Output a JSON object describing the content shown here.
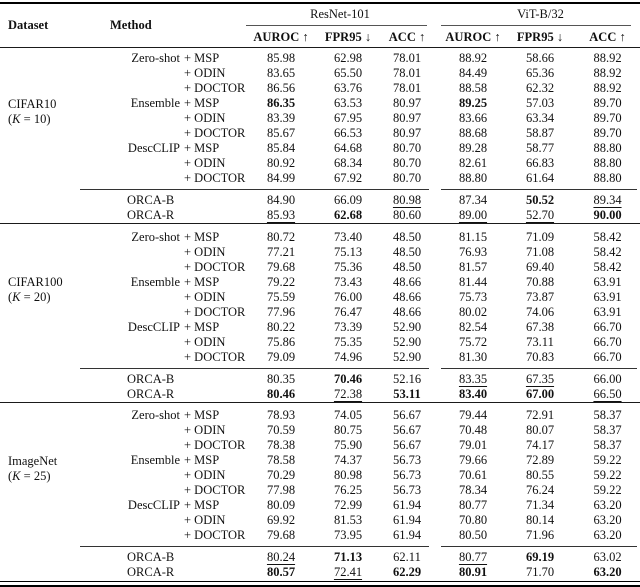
{
  "header": {
    "dataset_label": "Dataset",
    "method_label": "Method",
    "backbones": [
      "ResNet-101",
      "ViT-B/32"
    ],
    "metrics": [
      "AUROC ↑",
      "FPR95 ↓",
      "ACC ↑"
    ]
  },
  "blocks": [
    {
      "dataset": "CIFAR10",
      "k_symbol": "K",
      "k_rest": " = 10",
      "rows": [
        {
          "g": "Zero-shot",
          "v": "+ MSP",
          "vals": [
            [
              "85.98",
              ""
            ],
            [
              "62.98",
              ""
            ],
            [
              "78.01",
              ""
            ],
            [
              "88.92",
              ""
            ],
            [
              "58.66",
              ""
            ],
            [
              "88.92",
              ""
            ]
          ]
        },
        {
          "g": "",
          "v": "+ ODIN",
          "vals": [
            [
              "83.65",
              ""
            ],
            [
              "65.50",
              ""
            ],
            [
              "78.01",
              ""
            ],
            [
              "84.49",
              ""
            ],
            [
              "65.36",
              ""
            ],
            [
              "88.92",
              ""
            ]
          ]
        },
        {
          "g": "",
          "v": "+ DOCTOR",
          "vals": [
            [
              "86.56",
              ""
            ],
            [
              "63.76",
              ""
            ],
            [
              "78.01",
              ""
            ],
            [
              "88.58",
              ""
            ],
            [
              "62.32",
              ""
            ],
            [
              "88.92",
              ""
            ]
          ]
        },
        {
          "g": "Ensemble",
          "v": "+ MSP",
          "vals": [
            [
              "86.35",
              "b"
            ],
            [
              "63.53",
              ""
            ],
            [
              "80.97",
              ""
            ],
            [
              "89.25",
              "b"
            ],
            [
              "57.03",
              ""
            ],
            [
              "89.70",
              ""
            ]
          ]
        },
        {
          "g": "",
          "v": "+ ODIN",
          "vals": [
            [
              "83.39",
              ""
            ],
            [
              "67.95",
              ""
            ],
            [
              "80.97",
              ""
            ],
            [
              "83.66",
              ""
            ],
            [
              "63.34",
              ""
            ],
            [
              "89.70",
              ""
            ]
          ]
        },
        {
          "g": "",
          "v": "+ DOCTOR",
          "vals": [
            [
              "85.67",
              ""
            ],
            [
              "66.53",
              ""
            ],
            [
              "80.97",
              ""
            ],
            [
              "88.68",
              ""
            ],
            [
              "58.87",
              ""
            ],
            [
              "89.70",
              ""
            ]
          ]
        },
        {
          "g": "DescCLIP",
          "v": "+ MSP",
          "vals": [
            [
              "85.84",
              ""
            ],
            [
              "64.68",
              ""
            ],
            [
              "80.70",
              ""
            ],
            [
              "89.28",
              ""
            ],
            [
              "58.77",
              ""
            ],
            [
              "88.80",
              ""
            ]
          ]
        },
        {
          "g": "",
          "v": "+ ODIN",
          "vals": [
            [
              "80.92",
              ""
            ],
            [
              "68.34",
              ""
            ],
            [
              "80.70",
              ""
            ],
            [
              "82.61",
              ""
            ],
            [
              "66.83",
              ""
            ],
            [
              "88.80",
              ""
            ]
          ]
        },
        {
          "g": "",
          "v": "+ DOCTOR",
          "vals": [
            [
              "84.99",
              ""
            ],
            [
              "67.92",
              ""
            ],
            [
              "80.70",
              ""
            ],
            [
              "88.80",
              ""
            ],
            [
              "61.64",
              ""
            ],
            [
              "88.80",
              ""
            ]
          ]
        }
      ],
      "orca": [
        {
          "g": "ORCA-B",
          "vals": [
            [
              "84.90",
              ""
            ],
            [
              "66.09",
              ""
            ],
            [
              "80.98",
              "u"
            ],
            [
              "87.34",
              ""
            ],
            [
              "50.52",
              "b"
            ],
            [
              "89.34",
              "u"
            ]
          ]
        },
        {
          "g": "ORCA-R",
          "vals": [
            [
              "85.93",
              "u"
            ],
            [
              "62.68",
              "b"
            ],
            [
              "80.60",
              ""
            ],
            [
              "89.00",
              "u"
            ],
            [
              "52.70",
              "u"
            ],
            [
              "90.00",
              "b"
            ]
          ]
        }
      ]
    },
    {
      "dataset": "CIFAR100",
      "k_symbol": "K",
      "k_rest": " = 20",
      "rows": [
        {
          "g": "Zero-shot",
          "v": "+ MSP",
          "vals": [
            [
              "80.72",
              ""
            ],
            [
              "73.40",
              ""
            ],
            [
              "48.50",
              ""
            ],
            [
              "81.15",
              ""
            ],
            [
              "71.09",
              ""
            ],
            [
              "58.42",
              ""
            ]
          ]
        },
        {
          "g": "",
          "v": "+ ODIN",
          "vals": [
            [
              "77.21",
              ""
            ],
            [
              "75.13",
              ""
            ],
            [
              "48.50",
              ""
            ],
            [
              "76.93",
              ""
            ],
            [
              "71.08",
              ""
            ],
            [
              "58.42",
              ""
            ]
          ]
        },
        {
          "g": "",
          "v": "+ DOCTOR",
          "vals": [
            [
              "79.68",
              ""
            ],
            [
              "75.36",
              ""
            ],
            [
              "48.50",
              ""
            ],
            [
              "81.57",
              ""
            ],
            [
              "69.40",
              ""
            ],
            [
              "58.42",
              ""
            ]
          ]
        },
        {
          "g": "Ensemble",
          "v": "+ MSP",
          "vals": [
            [
              "79.22",
              ""
            ],
            [
              "73.43",
              ""
            ],
            [
              "48.66",
              ""
            ],
            [
              "81.44",
              ""
            ],
            [
              "70.88",
              ""
            ],
            [
              "63.91",
              ""
            ]
          ]
        },
        {
          "g": "",
          "v": "+ ODIN",
          "vals": [
            [
              "75.59",
              ""
            ],
            [
              "76.00",
              ""
            ],
            [
              "48.66",
              ""
            ],
            [
              "75.73",
              ""
            ],
            [
              "73.87",
              ""
            ],
            [
              "63.91",
              ""
            ]
          ]
        },
        {
          "g": "",
          "v": "+ DOCTOR",
          "vals": [
            [
              "77.96",
              ""
            ],
            [
              "76.47",
              ""
            ],
            [
              "48.66",
              ""
            ],
            [
              "80.02",
              ""
            ],
            [
              "74.06",
              ""
            ],
            [
              "63.91",
              ""
            ]
          ]
        },
        {
          "g": "DescCLIP",
          "v": "+ MSP",
          "vals": [
            [
              "80.22",
              ""
            ],
            [
              "73.39",
              ""
            ],
            [
              "52.90",
              ""
            ],
            [
              "82.54",
              ""
            ],
            [
              "67.38",
              ""
            ],
            [
              "66.70",
              ""
            ]
          ]
        },
        {
          "g": "",
          "v": "+ ODIN",
          "vals": [
            [
              "75.86",
              ""
            ],
            [
              "75.35",
              ""
            ],
            [
              "52.90",
              ""
            ],
            [
              "75.72",
              ""
            ],
            [
              "73.11",
              ""
            ],
            [
              "66.70",
              ""
            ]
          ]
        },
        {
          "g": "",
          "v": "+ DOCTOR",
          "vals": [
            [
              "79.09",
              ""
            ],
            [
              "74.96",
              ""
            ],
            [
              "52.90",
              ""
            ],
            [
              "81.30",
              ""
            ],
            [
              "70.83",
              ""
            ],
            [
              "66.70",
              ""
            ]
          ]
        }
      ],
      "orca": [
        {
          "g": "ORCA-B",
          "vals": [
            [
              "80.35",
              ""
            ],
            [
              "70.46",
              "b"
            ],
            [
              "52.16",
              ""
            ],
            [
              "83.35",
              "u"
            ],
            [
              "67.35",
              "u"
            ],
            [
              "66.00",
              ""
            ]
          ]
        },
        {
          "g": "ORCA-R",
          "vals": [
            [
              "80.46",
              "b"
            ],
            [
              "72.38",
              "u"
            ],
            [
              "53.11",
              "b"
            ],
            [
              "83.40",
              "b"
            ],
            [
              "67.00",
              "b"
            ],
            [
              "66.50",
              "u"
            ]
          ]
        }
      ]
    },
    {
      "dataset": "ImageNet",
      "k_symbol": "K",
      "k_rest": " = 25",
      "rows": [
        {
          "g": "Zero-shot",
          "v": "+ MSP",
          "vals": [
            [
              "78.93",
              ""
            ],
            [
              "74.05",
              ""
            ],
            [
              "56.67",
              ""
            ],
            [
              "79.44",
              ""
            ],
            [
              "72.91",
              ""
            ],
            [
              "58.37",
              ""
            ]
          ]
        },
        {
          "g": "",
          "v": "+ ODIN",
          "vals": [
            [
              "70.59",
              ""
            ],
            [
              "80.75",
              ""
            ],
            [
              "56.67",
              ""
            ],
            [
              "70.48",
              ""
            ],
            [
              "80.07",
              ""
            ],
            [
              "58.37",
              ""
            ]
          ]
        },
        {
          "g": "",
          "v": "+ DOCTOR",
          "vals": [
            [
              "78.38",
              ""
            ],
            [
              "75.90",
              ""
            ],
            [
              "56.67",
              ""
            ],
            [
              "79.01",
              ""
            ],
            [
              "74.17",
              ""
            ],
            [
              "58.37",
              ""
            ]
          ]
        },
        {
          "g": "Ensemble",
          "v": "+ MSP",
          "vals": [
            [
              "78.58",
              ""
            ],
            [
              "74.37",
              ""
            ],
            [
              "56.73",
              ""
            ],
            [
              "79.66",
              ""
            ],
            [
              "72.89",
              ""
            ],
            [
              "59.22",
              ""
            ]
          ]
        },
        {
          "g": "",
          "v": "+ ODIN",
          "vals": [
            [
              "70.29",
              ""
            ],
            [
              "80.98",
              ""
            ],
            [
              "56.73",
              ""
            ],
            [
              "70.61",
              ""
            ],
            [
              "80.55",
              ""
            ],
            [
              "59.22",
              ""
            ]
          ]
        },
        {
          "g": "",
          "v": "+ DOCTOR",
          "vals": [
            [
              "77.98",
              ""
            ],
            [
              "76.25",
              ""
            ],
            [
              "56.73",
              ""
            ],
            [
              "78.34",
              ""
            ],
            [
              "76.24",
              ""
            ],
            [
              "59.22",
              ""
            ]
          ]
        },
        {
          "g": "DescCLIP",
          "v": "+ MSP",
          "vals": [
            [
              "80.09",
              ""
            ],
            [
              "72.99",
              ""
            ],
            [
              "61.94",
              ""
            ],
            [
              "80.77",
              ""
            ],
            [
              "71.34",
              ""
            ],
            [
              "63.20",
              ""
            ]
          ]
        },
        {
          "g": "",
          "v": "+ ODIN",
          "vals": [
            [
              "69.92",
              ""
            ],
            [
              "81.53",
              ""
            ],
            [
              "61.94",
              ""
            ],
            [
              "70.80",
              ""
            ],
            [
              "80.14",
              ""
            ],
            [
              "63.20",
              ""
            ]
          ]
        },
        {
          "g": "",
          "v": "+ DOCTOR",
          "vals": [
            [
              "79.68",
              ""
            ],
            [
              "73.95",
              ""
            ],
            [
              "61.94",
              ""
            ],
            [
              "80.50",
              ""
            ],
            [
              "71.96",
              ""
            ],
            [
              "63.20",
              ""
            ]
          ]
        }
      ],
      "orca": [
        {
          "g": "ORCA-B",
          "vals": [
            [
              "80.24",
              "u"
            ],
            [
              "71.13",
              "b"
            ],
            [
              "62.11",
              ""
            ],
            [
              "80.77",
              "u"
            ],
            [
              "69.19",
              "b"
            ],
            [
              "63.02",
              ""
            ]
          ]
        },
        {
          "g": "ORCA-R",
          "vals": [
            [
              "80.57",
              "b"
            ],
            [
              "72.41",
              "u"
            ],
            [
              "62.29",
              "b"
            ],
            [
              "80.91",
              "b"
            ],
            [
              "71.70",
              ""
            ],
            [
              "63.20",
              "b"
            ]
          ]
        }
      ]
    }
  ]
}
